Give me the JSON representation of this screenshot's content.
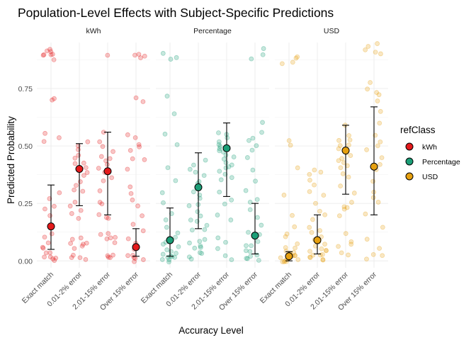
{
  "chart_data": {
    "type": "scatter",
    "title": "Population-Level Effects with Subject-Specific Predictions",
    "xlabel": "Accuracy Level",
    "ylabel": "Predicted Probability",
    "categories": [
      "Exact match",
      "0.01-2% error",
      "2.01-15% error",
      "Over 15% error"
    ],
    "ylim": [
      -0.03,
      0.95
    ],
    "yticks": [
      0.0,
      0.25,
      0.5,
      0.75
    ],
    "ytick_labels": [
      "0.00",
      "0.25",
      "0.50",
      "0.75"
    ],
    "grid": true,
    "legend": {
      "title": "refClass",
      "placement": "right",
      "entries": [
        {
          "label": "kWh",
          "color": "#E41A1C"
        },
        {
          "label": "Percentage",
          "color": "#1B9E77"
        },
        {
          "label": "USD",
          "color": "#E6A010"
        }
      ]
    },
    "panels": [
      {
        "name": "kWh",
        "color": "#E41A1C",
        "series": [
          {
            "category": "Exact match",
            "estimate": 0.15,
            "lower": 0.05,
            "upper": 0.33
          },
          {
            "category": "0.01-2% error",
            "estimate": 0.4,
            "lower": 0.24,
            "upper": 0.51
          },
          {
            "category": "2.01-15% error",
            "estimate": 0.39,
            "lower": 0.2,
            "upper": 0.56
          },
          {
            "category": "Over 15% error",
            "estimate": 0.06,
            "lower": 0.02,
            "upper": 0.14
          }
        ],
        "subject_points": [
          [
            0.91,
            0.9,
            0.92,
            0.89,
            0.9,
            0.91,
            0.88,
            0.9,
            0.71,
            0.7,
            0.56,
            0.53,
            0.52,
            0.3,
            0.27,
            0.24,
            0.22,
            0.2,
            0.12,
            0.1,
            0.08,
            0.05,
            0.03,
            0.02,
            0.01,
            0.01,
            0.02,
            0.04,
            0.06,
            0.0
          ],
          [
            0.52,
            0.5,
            0.48,
            0.46,
            0.45,
            0.43,
            0.42,
            0.4,
            0.38,
            0.37,
            0.35,
            0.33,
            0.31,
            0.3,
            0.25,
            0.24,
            0.22,
            0.2,
            0.18,
            0.1,
            0.09,
            0.08,
            0.08,
            0.07,
            0.06,
            0.05,
            0.03,
            0.02,
            0.01,
            0.01
          ],
          [
            0.9,
            0.56,
            0.52,
            0.5,
            0.48,
            0.46,
            0.45,
            0.44,
            0.42,
            0.4,
            0.39,
            0.38,
            0.36,
            0.35,
            0.3,
            0.26,
            0.25,
            0.2,
            0.19,
            0.18,
            0.12,
            0.11,
            0.1,
            0.1,
            0.09,
            0.08,
            0.02,
            0.02,
            0.01,
            0.01
          ],
          [
            0.9,
            0.89,
            0.9,
            0.88,
            0.71,
            0.69,
            0.55,
            0.53,
            0.51,
            0.5,
            0.48,
            0.45,
            0.44,
            0.4,
            0.32,
            0.29,
            0.26,
            0.24,
            0.2,
            0.16,
            0.13,
            0.1,
            0.08,
            0.05,
            0.03,
            0.02,
            0.01,
            0.01,
            0.0,
            0.02
          ]
        ]
      },
      {
        "name": "Percentage",
        "color": "#1B9E77",
        "series": [
          {
            "category": "Exact match",
            "estimate": 0.09,
            "lower": 0.02,
            "upper": 0.23
          },
          {
            "category": "0.01-2% error",
            "estimate": 0.32,
            "lower": 0.14,
            "upper": 0.47
          },
          {
            "category": "2.01-15% error",
            "estimate": 0.49,
            "lower": 0.28,
            "upper": 0.6
          },
          {
            "category": "Over 15% error",
            "estimate": 0.11,
            "lower": 0.03,
            "upper": 0.25
          }
        ],
        "subject_points": [
          [
            0.9,
            0.89,
            0.88,
            0.72,
            0.64,
            0.55,
            0.5,
            0.4,
            0.35,
            0.3,
            0.25,
            0.2,
            0.18,
            0.15,
            0.12,
            0.1,
            0.08,
            0.07,
            0.06,
            0.05,
            0.04,
            0.03,
            0.03,
            0.02,
            0.02,
            0.01,
            0.01,
            0.01,
            0.0,
            0.0
          ],
          [
            0.44,
            0.42,
            0.4,
            0.38,
            0.37,
            0.35,
            0.34,
            0.32,
            0.3,
            0.29,
            0.27,
            0.25,
            0.24,
            0.22,
            0.2,
            0.18,
            0.17,
            0.15,
            0.14,
            0.13,
            0.09,
            0.08,
            0.08,
            0.07,
            0.06,
            0.05,
            0.04,
            0.03,
            0.02,
            0.01
          ],
          [
            0.56,
            0.55,
            0.53,
            0.52,
            0.51,
            0.5,
            0.49,
            0.48,
            0.47,
            0.46,
            0.45,
            0.44,
            0.43,
            0.42,
            0.41,
            0.4,
            0.39,
            0.38,
            0.36,
            0.35,
            0.3,
            0.27,
            0.25,
            0.2,
            0.18,
            0.1,
            0.08,
            0.05,
            0.02,
            0.01
          ],
          [
            0.92,
            0.9,
            0.88,
            0.6,
            0.56,
            0.53,
            0.52,
            0.5,
            0.48,
            0.45,
            0.4,
            0.35,
            0.3,
            0.27,
            0.25,
            0.22,
            0.19,
            0.16,
            0.13,
            0.11,
            0.09,
            0.07,
            0.06,
            0.05,
            0.04,
            0.03,
            0.02,
            0.01,
            0.01,
            0.0
          ]
        ]
      },
      {
        "name": "USD",
        "color": "#E6A010",
        "series": [
          {
            "category": "Exact match",
            "estimate": 0.02,
            "lower": 0.0,
            "upper": 0.04
          },
          {
            "category": "0.01-2% error",
            "estimate": 0.09,
            "lower": 0.03,
            "upper": 0.2
          },
          {
            "category": "2.01-15% error",
            "estimate": 0.48,
            "lower": 0.29,
            "upper": 0.59
          },
          {
            "category": "Over 15% error",
            "estimate": 0.41,
            "lower": 0.2,
            "upper": 0.67
          }
        ],
        "subject_points": [
          [
            0.89,
            0.88,
            0.87,
            0.86,
            0.52,
            0.5,
            0.4,
            0.29,
            0.2,
            0.15,
            0.12,
            0.1,
            0.08,
            0.06,
            0.05,
            0.04,
            0.04,
            0.03,
            0.03,
            0.02,
            0.02,
            0.02,
            0.01,
            0.01,
            0.01,
            0.01,
            0.0,
            0.0,
            0.0,
            0.0
          ],
          [
            0.4,
            0.39,
            0.38,
            0.35,
            0.33,
            0.3,
            0.28,
            0.25,
            0.22,
            0.2,
            0.18,
            0.15,
            0.13,
            0.12,
            0.1,
            0.09,
            0.08,
            0.07,
            0.06,
            0.05,
            0.05,
            0.04,
            0.04,
            0.03,
            0.03,
            0.02,
            0.02,
            0.01,
            0.01,
            0.0
          ],
          [
            0.59,
            0.55,
            0.53,
            0.52,
            0.51,
            0.5,
            0.49,
            0.48,
            0.47,
            0.46,
            0.45,
            0.44,
            0.43,
            0.42,
            0.4,
            0.38,
            0.36,
            0.33,
            0.3,
            0.26,
            0.24,
            0.23,
            0.22,
            0.2,
            0.12,
            0.08,
            0.07,
            0.06,
            0.03,
            0.02
          ],
          [
            0.94,
            0.93,
            0.92,
            0.91,
            0.9,
            0.78,
            0.75,
            0.73,
            0.72,
            0.7,
            0.65,
            0.6,
            0.55,
            0.52,
            0.5,
            0.48,
            0.45,
            0.42,
            0.4,
            0.35,
            0.3,
            0.27,
            0.25,
            0.2,
            0.15,
            0.1,
            0.06,
            0.03,
            0.02,
            0.01
          ]
        ]
      }
    ]
  }
}
